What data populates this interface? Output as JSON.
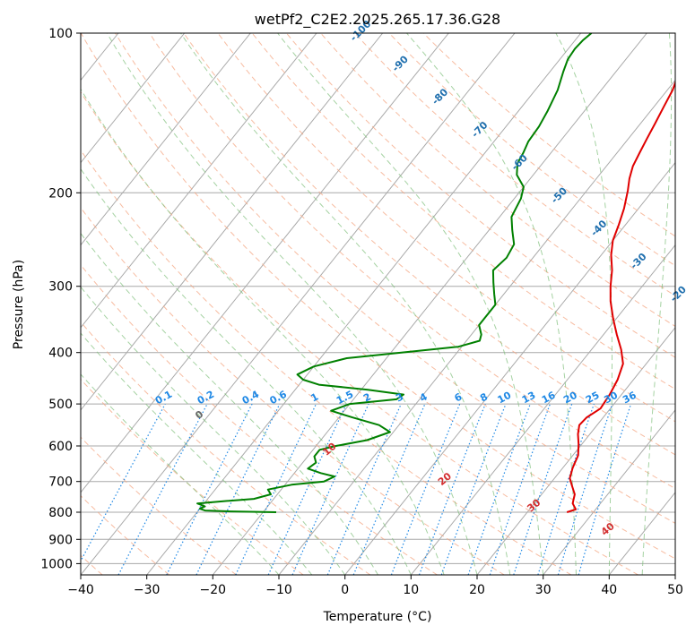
{
  "chart_data": {
    "type": "skew-t",
    "title": "wetPf2_C2E2.2025.265.17.36.G28",
    "xlabel": "Temperature (°C)",
    "ylabel": "Pressure (hPa)",
    "xlim": [
      -40,
      50
    ],
    "ylim": [
      1050,
      100
    ],
    "x_ticks": [
      -40,
      -30,
      -20,
      -10,
      0,
      10,
      20,
      30,
      40,
      50
    ],
    "x_tick_labels": [
      "−40",
      "−30",
      "−20",
      "−10",
      "0",
      "10",
      "20",
      "30",
      "40",
      "50"
    ],
    "y_ticks": [
      100,
      200,
      300,
      400,
      500,
      600,
      700,
      800,
      900,
      1000
    ],
    "y_tick_labels": [
      "100",
      "200",
      "300",
      "400",
      "500",
      "600",
      "700",
      "800",
      "900",
      "1000"
    ],
    "series": [
      {
        "name": "Temperature",
        "color": "#e00000",
        "points": [
          [
            26.0,
            800
          ],
          [
            27.0,
            790
          ],
          [
            25.8,
            770
          ],
          [
            25.0,
            740
          ],
          [
            23.5,
            712
          ],
          [
            22.3,
            690
          ],
          [
            21.5,
            660
          ],
          [
            20.8,
            625
          ],
          [
            19.5,
            595
          ],
          [
            18.2,
            570
          ],
          [
            17.3,
            548
          ],
          [
            17.5,
            530
          ],
          [
            18.5,
            510
          ],
          [
            18.2,
            480
          ],
          [
            17.6,
            450
          ],
          [
            16.5,
            420
          ],
          [
            14.5,
            395
          ],
          [
            12.0,
            370
          ],
          [
            9.5,
            345
          ],
          [
            7.0,
            320
          ],
          [
            5.2,
            300
          ],
          [
            3.5,
            280
          ],
          [
            1.5,
            262
          ],
          [
            0.0,
            246
          ],
          [
            -1.0,
            230
          ],
          [
            -2.2,
            214
          ],
          [
            -3.8,
            198
          ],
          [
            -5.0,
            188
          ],
          [
            -6.0,
            178
          ],
          [
            -6.6,
            168
          ],
          [
            -7.2,
            158
          ],
          [
            -7.8,
            148
          ],
          [
            -8.5,
            138
          ],
          [
            -9.2,
            128
          ],
          [
            -10.2,
            120
          ],
          [
            -12.0,
            112
          ],
          [
            -13.2,
            107
          ],
          [
            -14.2,
            103
          ],
          [
            -14.8,
            100
          ]
        ]
      },
      {
        "name": "Dewpoint",
        "color": "#008000",
        "points": [
          [
            -18.0,
            800
          ],
          [
            -25.0,
            797
          ],
          [
            -29.0,
            794
          ],
          [
            -30.0,
            788
          ],
          [
            -29.5,
            780
          ],
          [
            -31.0,
            770
          ],
          [
            -27.0,
            762
          ],
          [
            -23.0,
            755
          ],
          [
            -21.0,
            740
          ],
          [
            -22.0,
            725
          ],
          [
            -19.0,
            710
          ],
          [
            -14.5,
            700
          ],
          [
            -13.5,
            685
          ],
          [
            -16.0,
            675
          ],
          [
            -18.5,
            662
          ],
          [
            -18.0,
            645
          ],
          [
            -19.0,
            628
          ],
          [
            -19.0,
            610
          ],
          [
            -17.0,
            600
          ],
          [
            -13.0,
            585
          ],
          [
            -10.5,
            565
          ],
          [
            -13.0,
            548
          ],
          [
            -18.0,
            530
          ],
          [
            -22.0,
            515
          ],
          [
            -20.0,
            500
          ],
          [
            -13.5,
            490
          ],
          [
            -13.0,
            480
          ],
          [
            -19.0,
            470
          ],
          [
            -27.0,
            460
          ],
          [
            -30.0,
            450
          ],
          [
            -31.5,
            440
          ],
          [
            -30.0,
            425
          ],
          [
            -26.0,
            410
          ],
          [
            -16.0,
            397
          ],
          [
            -10.5,
            390
          ],
          [
            -8.0,
            380
          ],
          [
            -8.5,
            370
          ],
          [
            -10.0,
            355
          ],
          [
            -10.0,
            340
          ],
          [
            -10.0,
            325
          ],
          [
            -11.5,
            310
          ],
          [
            -13.0,
            295
          ],
          [
            -14.5,
            280
          ],
          [
            -14.0,
            265
          ],
          [
            -14.5,
            250
          ],
          [
            -16.5,
            235
          ],
          [
            -18.2,
            222
          ],
          [
            -19.0,
            205
          ],
          [
            -20.0,
            195
          ],
          [
            -22.5,
            185
          ],
          [
            -23.8,
            176
          ],
          [
            -24.2,
            168
          ],
          [
            -24.8,
            160
          ],
          [
            -25.0,
            150
          ],
          [
            -25.6,
            140
          ],
          [
            -26.6,
            128
          ],
          [
            -28.0,
            118
          ],
          [
            -28.8,
            112
          ],
          [
            -29.0,
            107
          ],
          [
            -28.8,
            103
          ],
          [
            -28.4,
            100
          ]
        ]
      }
    ],
    "dry_adiabats": [
      -100,
      -90,
      -80,
      -70,
      -60,
      -50,
      -40,
      -30,
      -20,
      -10,
      0,
      10,
      20,
      30,
      40,
      50,
      60,
      70,
      80,
      90,
      100,
      110,
      120,
      130,
      140,
      150
    ],
    "dry_adiabat_labels": [
      "-100",
      "-90",
      "-80",
      "-70",
      "-60",
      "-50",
      "-40",
      "-30",
      "-20",
      "-10"
    ],
    "moist_adiabats": [
      -10,
      -5,
      0,
      5,
      10,
      15,
      20,
      25,
      30,
      35,
      40,
      45
    ],
    "moist_adiabat_labels": [
      "0",
      "10",
      "20",
      "30",
      "40"
    ],
    "mixing_ratios": [
      0.1,
      0.2,
      0.4,
      0.6,
      1,
      1.5,
      2,
      3,
      4,
      6,
      8,
      10,
      13,
      16,
      20,
      25,
      30,
      36
    ],
    "mixing_ratio_labels": [
      "0.1",
      "0.2",
      "0.4",
      "0.6",
      "1",
      "1.5",
      "2",
      "3",
      "4",
      "6",
      "8",
      "10",
      "13",
      "16",
      "20",
      "25",
      "30",
      "36"
    ],
    "colors": {
      "temperature": "#e00000",
      "dewpoint": "#008000",
      "isotherm": "#a8a8a8",
      "dry_adiabat": "#f4a582",
      "moist_adiabat": "#7fbf7b",
      "mixing_ratio": "#1e88e5",
      "dry_label": "#1f6fae",
      "moist_label": "#d32f2f"
    }
  }
}
